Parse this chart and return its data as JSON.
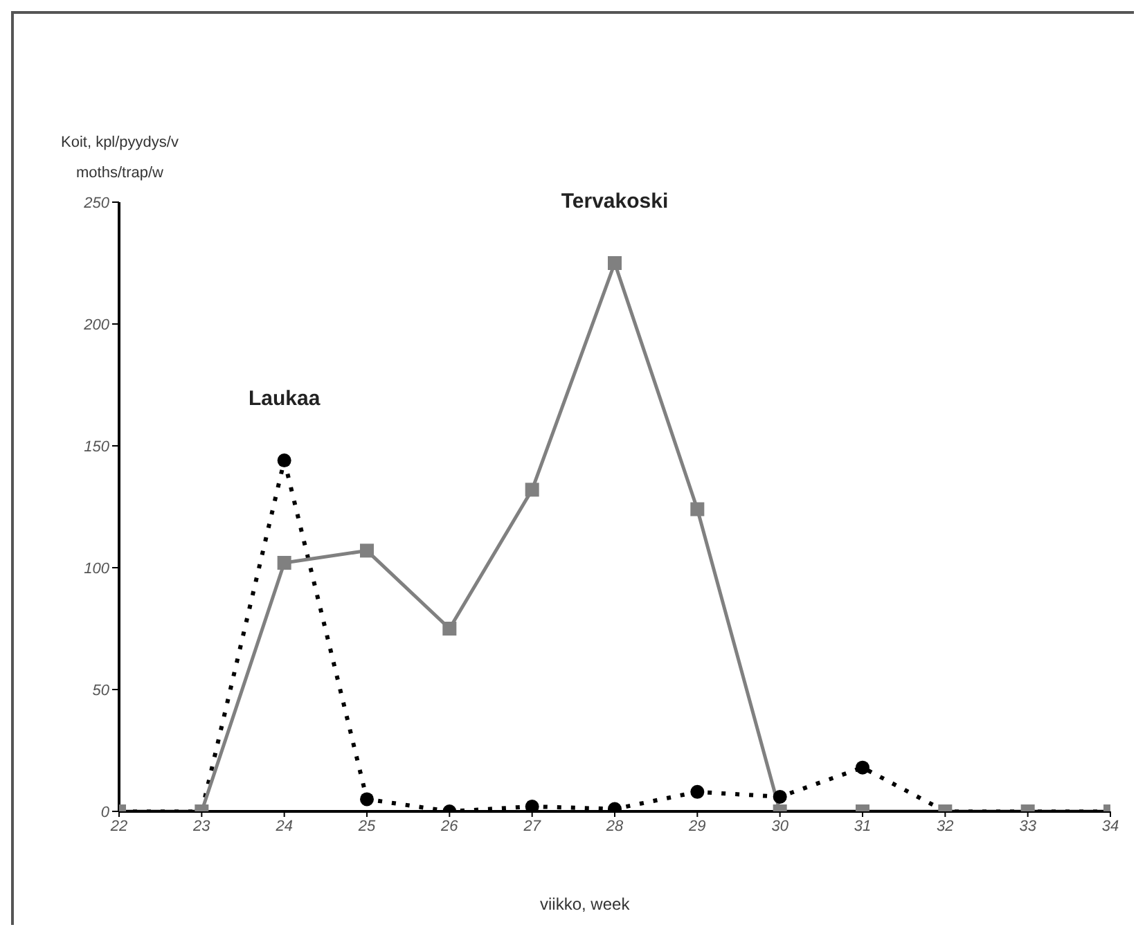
{
  "chart_data": {
    "type": "line",
    "ylabel": "Koit, kpl/pyydys/v\nmoths/trap/w",
    "xlabel": "viikko, week",
    "x": [
      22,
      23,
      24,
      25,
      26,
      27,
      28,
      29,
      30,
      31,
      32,
      33,
      34
    ],
    "series": [
      {
        "name": "Laukaa",
        "color": "#000000",
        "line_style": "dotted",
        "marker": "circle",
        "values": [
          0,
          0,
          144,
          5,
          0,
          2,
          1,
          8,
          6,
          18,
          0,
          0,
          0
        ]
      },
      {
        "name": "Tervakoski",
        "color": "#808080",
        "line_style": "solid",
        "marker": "square",
        "values": [
          0,
          0,
          102,
          107,
          75,
          132,
          225,
          124,
          0,
          0,
          0,
          0,
          0
        ]
      }
    ],
    "xlim": [
      22,
      34
    ],
    "xticks": [
      22,
      23,
      24,
      25,
      26,
      27,
      28,
      29,
      30,
      31,
      32,
      33,
      34
    ],
    "ylim": [
      0,
      250
    ],
    "yticks": [
      0,
      50,
      100,
      150,
      200,
      250
    ],
    "grid": false,
    "legend": false
  }
}
